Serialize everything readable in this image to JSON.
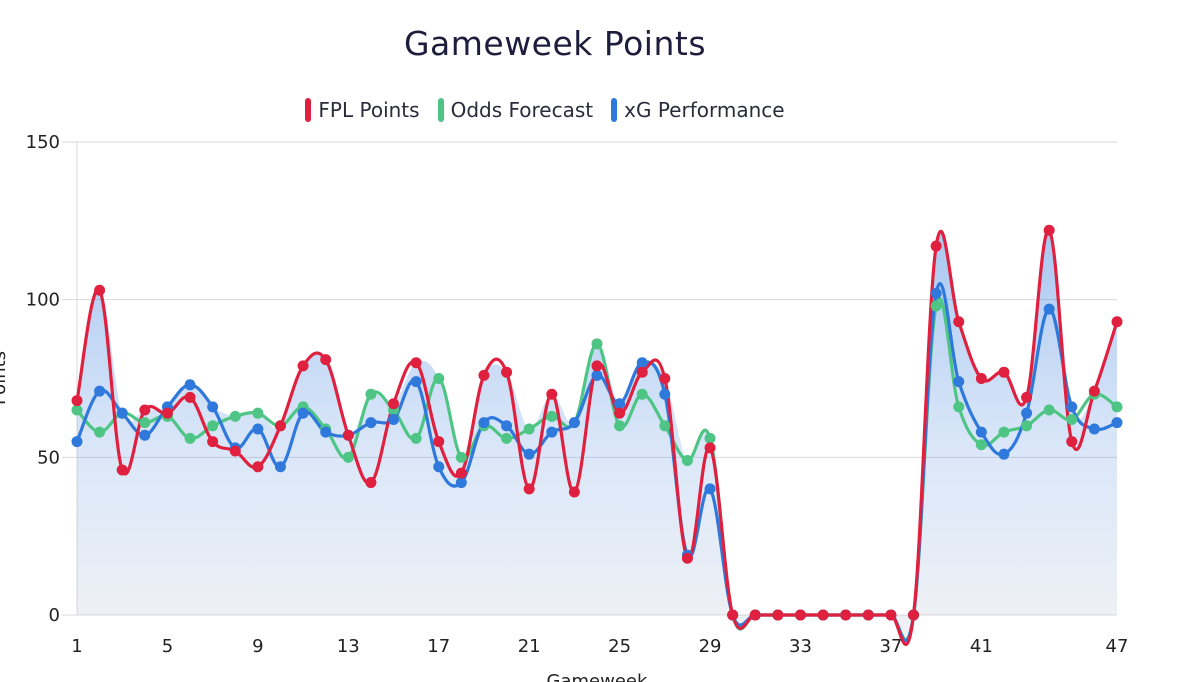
{
  "chart_data": {
    "type": "line",
    "title": "Gameweek Points",
    "xlabel": "Gameweek",
    "ylabel": "Points",
    "ylim": [
      0,
      150
    ],
    "yticks": [
      0,
      50,
      100,
      150
    ],
    "xticks": [
      1,
      5,
      9,
      13,
      17,
      21,
      25,
      29,
      33,
      37,
      41,
      47
    ],
    "x": [
      1,
      2,
      3,
      4,
      5,
      6,
      7,
      8,
      9,
      10,
      11,
      12,
      13,
      14,
      15,
      16,
      17,
      18,
      19,
      20,
      21,
      22,
      23,
      24,
      25,
      26,
      27,
      28,
      29,
      30,
      31,
      32,
      33,
      34,
      35,
      36,
      37,
      38,
      39,
      40,
      41,
      42,
      43,
      44,
      45,
      46,
      47
    ],
    "grid": true,
    "legend_position": "top",
    "series": [
      {
        "name": "FPL Points",
        "color": "#e0203f",
        "values": [
          68,
          103,
          46,
          65,
          64,
          69,
          55,
          52,
          47,
          60,
          79,
          81,
          57,
          42,
          67,
          80,
          55,
          45,
          76,
          77,
          40,
          70,
          39,
          79,
          64,
          77,
          75,
          18,
          53,
          0,
          0,
          0,
          0,
          0,
          0,
          0,
          0,
          0,
          117,
          93,
          75,
          77,
          69,
          122,
          55,
          71,
          93
        ]
      },
      {
        "name": "Odds Forecast",
        "color": "#4ec585",
        "values": [
          65,
          58,
          64,
          61,
          63,
          56,
          60,
          63,
          64,
          60,
          66,
          59,
          50,
          70,
          65,
          56,
          75,
          50,
          60,
          56,
          59,
          63,
          61,
          86,
          60,
          70,
          60,
          49,
          56,
          0,
          0,
          0,
          0,
          0,
          0,
          0,
          0,
          0,
          98,
          66,
          54,
          58,
          60,
          65,
          62,
          70,
          66
        ]
      },
      {
        "name": "xG Performance",
        "color": "#2f78dc",
        "values": [
          55,
          71,
          64,
          57,
          66,
          73,
          66,
          53,
          59,
          47,
          64,
          58,
          57,
          61,
          62,
          74,
          47,
          42,
          61,
          60,
          51,
          58,
          61,
          76,
          67,
          80,
          70,
          19,
          40,
          0,
          0,
          0,
          0,
          0,
          0,
          0,
          0,
          0,
          102,
          74,
          58,
          51,
          64,
          97,
          66,
          59,
          61
        ]
      }
    ]
  }
}
